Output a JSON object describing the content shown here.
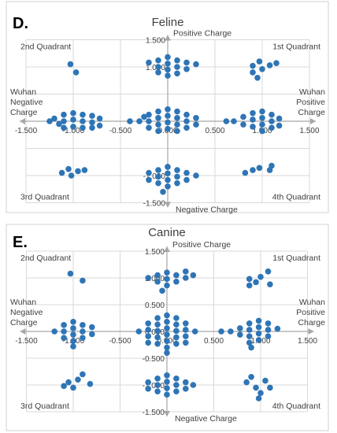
{
  "chart_data": [
    {
      "type": "scatter",
      "panel_label": "D.",
      "title": "Feline",
      "axis_labels": {
        "top": "Positive Charge",
        "bottom": "Negative Charge",
        "left": "Wuhan\nNegative\nCharge",
        "right": "Wuhan\nPositive\nCharge"
      },
      "quadrant_labels": [
        "2nd Quadrant",
        "1st Quadrant",
        "3rd Quadrant",
        "4th Quadrant"
      ],
      "xlim": [
        -1.5,
        1.5
      ],
      "ylim": [
        -1.5,
        1.5
      ],
      "x_ticks": [
        "-1.500",
        "-1.000",
        "-0.500",
        "0.000",
        "0.500",
        "1.000",
        "1.500"
      ],
      "y_ticks": [
        "1.500",
        "1.000",
        "-1.000",
        "-1.500"
      ],
      "grid": true,
      "marker_color": "#2E75B6",
      "points": [
        {
          "x": -1.03,
          "y": 1.05
        },
        {
          "x": -0.97,
          "y": 0.9
        },
        {
          "x": -0.2,
          "y": 1.08
        },
        {
          "x": -0.1,
          "y": 1.12
        },
        {
          "x": -0.1,
          "y": 1.0
        },
        {
          "x": 0.0,
          "y": 1.18
        },
        {
          "x": 0.0,
          "y": 1.06
        },
        {
          "x": 0.0,
          "y": 0.95
        },
        {
          "x": 0.1,
          "y": 1.12
        },
        {
          "x": 0.1,
          "y": 1.0
        },
        {
          "x": 0.1,
          "y": 0.88
        },
        {
          "x": 0.2,
          "y": 1.08
        },
        {
          "x": 0.2,
          "y": 0.96
        },
        {
          "x": 0.3,
          "y": 1.05
        },
        {
          "x": -0.1,
          "y": 0.9
        },
        {
          "x": 0.0,
          "y": 0.84
        },
        {
          "x": 0.9,
          "y": 1.02
        },
        {
          "x": 0.9,
          "y": 0.9
        },
        {
          "x": 0.95,
          "y": 0.8
        },
        {
          "x": 0.97,
          "y": 1.1
        },
        {
          "x": 1.0,
          "y": 0.96
        },
        {
          "x": 1.08,
          "y": 1.03
        },
        {
          "x": 1.15,
          "y": 1.07
        },
        {
          "x": -1.25,
          "y": 0.0
        },
        {
          "x": -1.2,
          "y": 0.05
        },
        {
          "x": -1.15,
          "y": -0.05
        },
        {
          "x": -1.1,
          "y": 0.12
        },
        {
          "x": -1.1,
          "y": 0.0
        },
        {
          "x": -1.1,
          "y": -0.12
        },
        {
          "x": -1.0,
          "y": 0.15
        },
        {
          "x": -1.0,
          "y": 0.03
        },
        {
          "x": -1.0,
          "y": -0.1
        },
        {
          "x": -0.9,
          "y": 0.12
        },
        {
          "x": -0.9,
          "y": 0.0
        },
        {
          "x": -0.9,
          "y": -0.12
        },
        {
          "x": -0.8,
          "y": 0.1
        },
        {
          "x": -0.8,
          "y": -0.02
        },
        {
          "x": -0.8,
          "y": -0.12
        },
        {
          "x": -0.72,
          "y": 0.05
        },
        {
          "x": -0.72,
          "y": -0.08
        },
        {
          "x": -0.4,
          "y": 0.0
        },
        {
          "x": -0.3,
          "y": 0.0
        },
        {
          "x": -0.25,
          "y": 0.08
        },
        {
          "x": -0.2,
          "y": 0.12
        },
        {
          "x": -0.2,
          "y": 0.0
        },
        {
          "x": -0.2,
          "y": -0.12
        },
        {
          "x": -0.1,
          "y": 0.18
        },
        {
          "x": -0.1,
          "y": 0.06
        },
        {
          "x": -0.1,
          "y": -0.06
        },
        {
          "x": -0.1,
          "y": -0.18
        },
        {
          "x": 0.0,
          "y": 0.22
        },
        {
          "x": 0.0,
          "y": 0.1
        },
        {
          "x": 0.0,
          "y": -0.02
        },
        {
          "x": 0.0,
          "y": -0.14
        },
        {
          "x": 0.1,
          "y": 0.18
        },
        {
          "x": 0.1,
          "y": 0.06
        },
        {
          "x": 0.1,
          "y": -0.06
        },
        {
          "x": 0.1,
          "y": -0.18
        },
        {
          "x": 0.2,
          "y": 0.12
        },
        {
          "x": 0.2,
          "y": 0.0
        },
        {
          "x": 0.2,
          "y": -0.12
        },
        {
          "x": 0.3,
          "y": 0.06
        },
        {
          "x": 0.3,
          "y": -0.06
        },
        {
          "x": 0.62,
          "y": 0.0
        },
        {
          "x": 0.7,
          "y": 0.0
        },
        {
          "x": 0.8,
          "y": 0.08
        },
        {
          "x": 0.8,
          "y": -0.06
        },
        {
          "x": 0.9,
          "y": 0.15
        },
        {
          "x": 0.9,
          "y": 0.03
        },
        {
          "x": 0.9,
          "y": -0.1
        },
        {
          "x": 1.0,
          "y": 0.18
        },
        {
          "x": 1.0,
          "y": 0.06
        },
        {
          "x": 1.0,
          "y": -0.06
        },
        {
          "x": 1.0,
          "y": -0.18
        },
        {
          "x": 1.1,
          "y": 0.12
        },
        {
          "x": 1.1,
          "y": 0.0
        },
        {
          "x": 1.1,
          "y": -0.12
        },
        {
          "x": 1.18,
          "y": 0.05
        },
        {
          "x": 1.18,
          "y": -0.08
        },
        {
          "x": -1.12,
          "y": -0.95
        },
        {
          "x": -1.05,
          "y": -0.88
        },
        {
          "x": -1.02,
          "y": -1.0
        },
        {
          "x": -0.95,
          "y": -0.92
        },
        {
          "x": -0.88,
          "y": -0.9
        },
        {
          "x": -0.2,
          "y": -0.95
        },
        {
          "x": -0.2,
          "y": -1.08
        },
        {
          "x": -0.1,
          "y": -0.9
        },
        {
          "x": -0.1,
          "y": -1.02
        },
        {
          "x": -0.1,
          "y": -1.14
        },
        {
          "x": 0.0,
          "y": -0.84
        },
        {
          "x": 0.0,
          "y": -0.96
        },
        {
          "x": 0.0,
          "y": -1.08
        },
        {
          "x": 0.0,
          "y": -1.2
        },
        {
          "x": 0.1,
          "y": -0.9
        },
        {
          "x": 0.1,
          "y": -1.02
        },
        {
          "x": 0.1,
          "y": -1.14
        },
        {
          "x": 0.2,
          "y": -0.95
        },
        {
          "x": 0.2,
          "y": -1.08
        },
        {
          "x": 0.3,
          "y": -1.0
        },
        {
          "x": -0.05,
          "y": -1.3
        },
        {
          "x": 0.82,
          "y": -0.95
        },
        {
          "x": 0.9,
          "y": -0.9
        },
        {
          "x": 0.97,
          "y": -0.86
        },
        {
          "x": 1.08,
          "y": -0.9
        },
        {
          "x": 1.1,
          "y": -0.82
        }
      ]
    },
    {
      "type": "scatter",
      "panel_label": "E.",
      "title": "Canine",
      "axis_labels": {
        "top": "Positive Charge",
        "bottom": "Negative Charge",
        "left": "Wuhan\nNegative\nCharge",
        "right": "Wuhan\nPositive\nCharge"
      },
      "quadrant_labels": [
        "2nd Quadrant",
        "1st Quadrant",
        "3rd Quadrant",
        "4th Quadrant"
      ],
      "xlim": [
        -1.5,
        1.5
      ],
      "ylim": [
        -1.5,
        1.5
      ],
      "x_ticks": [
        "-1.500",
        "-1.000",
        "-0.500",
        "0.000",
        "0.500",
        "1.000",
        "1.500"
      ],
      "y_ticks": [
        "1.500",
        "1.000",
        "0.500",
        "0.000",
        "-0.500",
        "-1.000",
        "-1.500"
      ],
      "grid": true,
      "marker_color": "#2E75B6",
      "points": [
        {
          "x": -1.03,
          "y": 1.08
        },
        {
          "x": -0.9,
          "y": 0.95
        },
        {
          "x": -0.2,
          "y": 1.0
        },
        {
          "x": -0.1,
          "y": 1.05
        },
        {
          "x": -0.1,
          "y": 0.93
        },
        {
          "x": 0.0,
          "y": 1.1
        },
        {
          "x": 0.0,
          "y": 0.98
        },
        {
          "x": 0.0,
          "y": 0.86
        },
        {
          "x": 0.1,
          "y": 1.05
        },
        {
          "x": 0.1,
          "y": 0.93
        },
        {
          "x": 0.2,
          "y": 1.12
        },
        {
          "x": 0.2,
          "y": 1.0
        },
        {
          "x": 0.28,
          "y": 1.05
        },
        {
          "x": -0.05,
          "y": 0.76
        },
        {
          "x": 0.88,
          "y": 0.98
        },
        {
          "x": 0.88,
          "y": 0.86
        },
        {
          "x": 0.95,
          "y": 0.92
        },
        {
          "x": 1.0,
          "y": 1.02
        },
        {
          "x": 1.08,
          "y": 1.12
        },
        {
          "x": 1.1,
          "y": 0.88
        },
        {
          "x": -1.2,
          "y": 0.0
        },
        {
          "x": -1.1,
          "y": 0.12
        },
        {
          "x": -1.1,
          "y": 0.0
        },
        {
          "x": -1.1,
          "y": -0.12
        },
        {
          "x": -1.0,
          "y": 0.18
        },
        {
          "x": -1.0,
          "y": 0.06
        },
        {
          "x": -1.0,
          "y": -0.06
        },
        {
          "x": -1.0,
          "y": -0.18
        },
        {
          "x": -0.9,
          "y": 0.12
        },
        {
          "x": -0.9,
          "y": 0.0
        },
        {
          "x": -0.9,
          "y": -0.12
        },
        {
          "x": -0.8,
          "y": 0.08
        },
        {
          "x": -0.8,
          "y": -0.05
        },
        {
          "x": -1.0,
          "y": -0.28
        },
        {
          "x": -0.3,
          "y": 0.0
        },
        {
          "x": -0.2,
          "y": 0.15
        },
        {
          "x": -0.2,
          "y": 0.03
        },
        {
          "x": -0.2,
          "y": -0.09
        },
        {
          "x": -0.2,
          "y": -0.21
        },
        {
          "x": -0.1,
          "y": 0.25
        },
        {
          "x": -0.1,
          "y": 0.13
        },
        {
          "x": -0.1,
          "y": 0.01
        },
        {
          "x": -0.1,
          "y": -0.11
        },
        {
          "x": -0.1,
          "y": -0.23
        },
        {
          "x": 0.0,
          "y": 0.3
        },
        {
          "x": 0.0,
          "y": 0.18
        },
        {
          "x": 0.0,
          "y": 0.06
        },
        {
          "x": 0.0,
          "y": -0.06
        },
        {
          "x": 0.0,
          "y": -0.18
        },
        {
          "x": 0.0,
          "y": -0.3
        },
        {
          "x": 0.1,
          "y": 0.25
        },
        {
          "x": 0.1,
          "y": 0.13
        },
        {
          "x": 0.1,
          "y": 0.01
        },
        {
          "x": 0.1,
          "y": -0.11
        },
        {
          "x": 0.1,
          "y": -0.23
        },
        {
          "x": 0.2,
          "y": 0.15
        },
        {
          "x": 0.2,
          "y": 0.03
        },
        {
          "x": 0.2,
          "y": -0.09
        },
        {
          "x": 0.2,
          "y": -0.21
        },
        {
          "x": 0.3,
          "y": 0.0
        },
        {
          "x": 0.0,
          "y": -0.4
        },
        {
          "x": 0.58,
          "y": 0.0
        },
        {
          "x": 0.68,
          "y": 0.0
        },
        {
          "x": 0.78,
          "y": 0.06
        },
        {
          "x": 0.78,
          "y": -0.06
        },
        {
          "x": 0.88,
          "y": 0.15
        },
        {
          "x": 0.88,
          "y": 0.03
        },
        {
          "x": 0.88,
          "y": -0.09
        },
        {
          "x": 0.88,
          "y": -0.21
        },
        {
          "x": 0.98,
          "y": 0.2
        },
        {
          "x": 0.98,
          "y": 0.08
        },
        {
          "x": 0.98,
          "y": -0.04
        },
        {
          "x": 0.98,
          "y": -0.16
        },
        {
          "x": 1.08,
          "y": 0.15
        },
        {
          "x": 1.08,
          "y": 0.03
        },
        {
          "x": 1.08,
          "y": -0.09
        },
        {
          "x": 1.18,
          "y": 0.05
        },
        {
          "x": 0.9,
          "y": -0.3
        },
        {
          "x": -1.1,
          "y": -1.02
        },
        {
          "x": -1.05,
          "y": -0.95
        },
        {
          "x": -1.0,
          "y": -1.05
        },
        {
          "x": -0.95,
          "y": -0.9
        },
        {
          "x": -0.9,
          "y": -0.8
        },
        {
          "x": -0.82,
          "y": -0.98
        },
        {
          "x": -0.2,
          "y": -0.95
        },
        {
          "x": -0.2,
          "y": -1.07
        },
        {
          "x": -0.1,
          "y": -0.88
        },
        {
          "x": -0.1,
          "y": -1.0
        },
        {
          "x": -0.1,
          "y": -1.12
        },
        {
          "x": 0.0,
          "y": -0.82
        },
        {
          "x": 0.0,
          "y": -0.94
        },
        {
          "x": 0.0,
          "y": -1.06
        },
        {
          "x": 0.0,
          "y": -1.18
        },
        {
          "x": 0.1,
          "y": -0.88
        },
        {
          "x": 0.1,
          "y": -1.0
        },
        {
          "x": 0.1,
          "y": -1.12
        },
        {
          "x": 0.2,
          "y": -0.95
        },
        {
          "x": 0.2,
          "y": -1.07
        },
        {
          "x": 0.28,
          "y": -1.0
        },
        {
          "x": 0.85,
          "y": -0.95
        },
        {
          "x": 0.9,
          "y": -0.85
        },
        {
          "x": 0.95,
          "y": -1.05
        },
        {
          "x": 1.0,
          "y": -1.15
        },
        {
          "x": 1.05,
          "y": -0.92
        },
        {
          "x": 1.1,
          "y": -1.05
        },
        {
          "x": 0.98,
          "y": -1.25
        }
      ]
    }
  ]
}
